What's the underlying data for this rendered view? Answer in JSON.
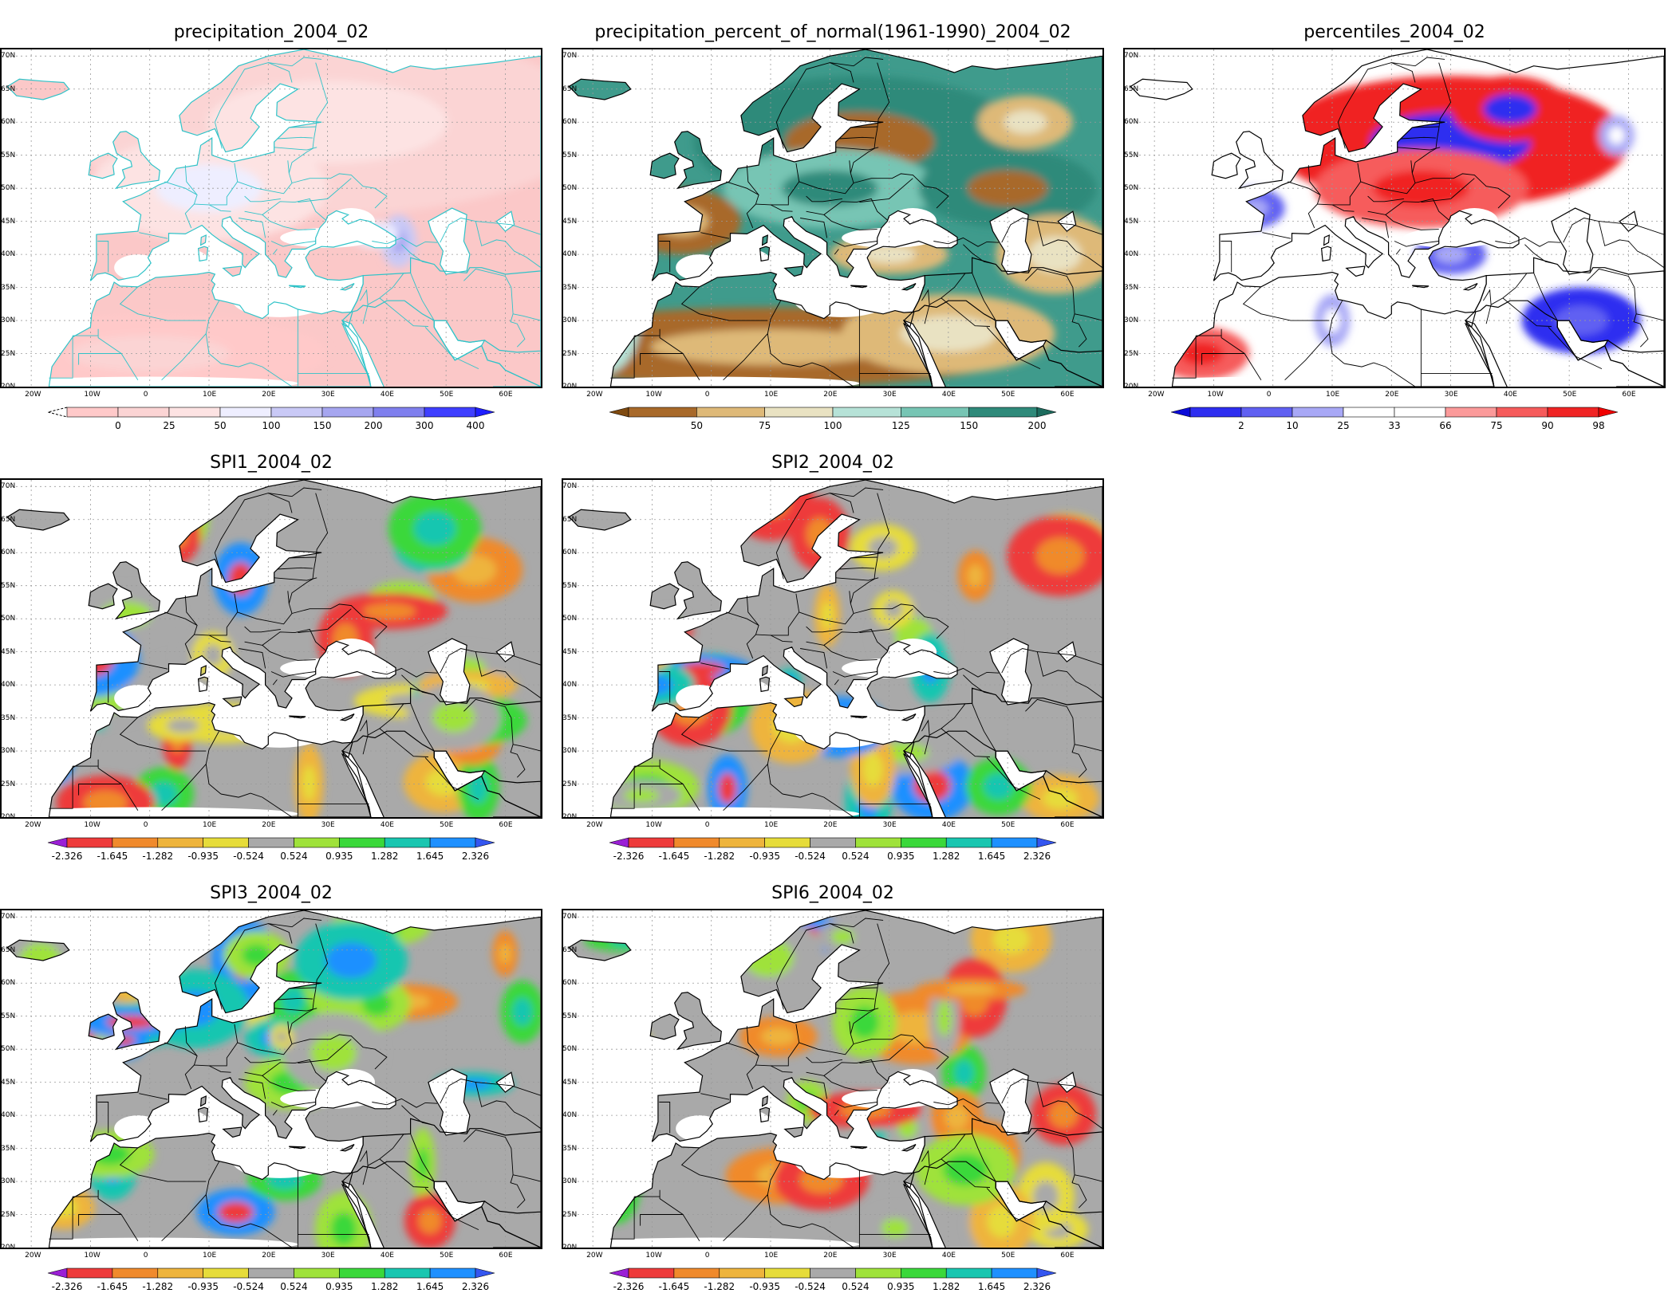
{
  "lat_labels": [
    "20N",
    "25N",
    "30N",
    "35N",
    "40N",
    "45N",
    "50N",
    "55N",
    "60N",
    "65N",
    "70N"
  ],
  "lon_labels": [
    "20W",
    "10W",
    "0",
    "10E",
    "20E",
    "30E",
    "40E",
    "50E",
    "60E"
  ],
  "panels": [
    {
      "id": "precip",
      "title": "precipitation_2004_02",
      "scheme": "precip",
      "colorbar": {
        "labels": [
          "0",
          "25",
          "50",
          "100",
          "150",
          "200",
          "300",
          "400"
        ],
        "colors": [
          "#ffc9c9",
          "#fbd4d4",
          "#fde3e3",
          "#eeeeff",
          "#c9c9f6",
          "#a6a6f0",
          "#7f7fee",
          "#3f3fff"
        ],
        "left_arrow": "dashed",
        "right_color": "#1f1fff"
      }
    },
    {
      "id": "percent",
      "title": "precipitation_percent_of_normal(1961-1990)_2004_02",
      "scheme": "percent",
      "colorbar": {
        "labels": [
          "50",
          "75",
          "100",
          "125",
          "150",
          "200"
        ],
        "colors": [
          "#a8692a",
          "#deb978",
          "#e9e2c2",
          "#b6e2d7",
          "#77c5b4",
          "#2f8a7a"
        ],
        "left_color": "#7f4a10",
        "right_color": "#1d6c5e"
      }
    },
    {
      "id": "percentiles",
      "title": "percentiles_2004_02",
      "scheme": "percentiles",
      "colorbar": {
        "labels": [
          "2",
          "10",
          "25",
          "33",
          "66",
          "75",
          "90",
          "98"
        ],
        "colors": [
          "#2e2ef0",
          "#6060f2",
          "#a8a8f6",
          "#ffffff",
          "#ffffff",
          "#fb9a9a",
          "#f65b5b",
          "#f02424"
        ],
        "left_color": "#0b0bd8",
        "right_color": "#f00000"
      }
    },
    {
      "id": "spi1",
      "title": "SPI1_2004_02",
      "scheme": "spi",
      "colorbar": {
        "labels": [
          "-2.326",
          "-1.645",
          "-1.282",
          "-0.935",
          "-0.524",
          "0.524",
          "0.935",
          "1.282",
          "1.645",
          "2.326"
        ],
        "colors": [
          "#ee3b3b",
          "#f08a2c",
          "#eeb43c",
          "#e6dc3a",
          "#a9a9a9",
          "#9fe23a",
          "#3ad83a",
          "#19c6b0",
          "#1e90ff"
        ],
        "left_color": "#9a1fd6",
        "right_color": "#3456f0"
      }
    },
    {
      "id": "spi2",
      "title": "SPI2_2004_02",
      "scheme": "spi",
      "colorbar": {
        "labels": [
          "-2.326",
          "-1.645",
          "-1.282",
          "-0.935",
          "-0.524",
          "0.524",
          "0.935",
          "1.282",
          "1.645",
          "2.326"
        ],
        "colors": [
          "#ee3b3b",
          "#f08a2c",
          "#eeb43c",
          "#e6dc3a",
          "#a9a9a9",
          "#9fe23a",
          "#3ad83a",
          "#19c6b0",
          "#1e90ff"
        ],
        "left_color": "#9a1fd6",
        "right_color": "#3456f0"
      }
    },
    {
      "id": "spi3",
      "title": "SPI3_2004_02",
      "scheme": "spi",
      "colorbar": {
        "labels": [
          "-2.326",
          "-1.645",
          "-1.282",
          "-0.935",
          "-0.524",
          "0.524",
          "0.935",
          "1.282",
          "1.645",
          "2.326"
        ],
        "colors": [
          "#ee3b3b",
          "#f08a2c",
          "#eeb43c",
          "#e6dc3a",
          "#a9a9a9",
          "#9fe23a",
          "#3ad83a",
          "#19c6b0",
          "#1e90ff"
        ],
        "left_color": "#9a1fd6",
        "right_color": "#3456f0"
      }
    },
    {
      "id": "spi6",
      "title": "SPI6_2004_02",
      "scheme": "spi",
      "colorbar": {
        "labels": [
          "-2.326",
          "-1.645",
          "-1.282",
          "-0.935",
          "-0.524",
          "0.524",
          "0.935",
          "1.282",
          "1.645",
          "2.326"
        ],
        "colors": [
          "#ee3b3b",
          "#f08a2c",
          "#eeb43c",
          "#e6dc3a",
          "#a9a9a9",
          "#9fe23a",
          "#3ad83a",
          "#19c6b0",
          "#1e90ff"
        ],
        "left_color": "#9a1fd6",
        "right_color": "#3456f0"
      }
    }
  ]
}
